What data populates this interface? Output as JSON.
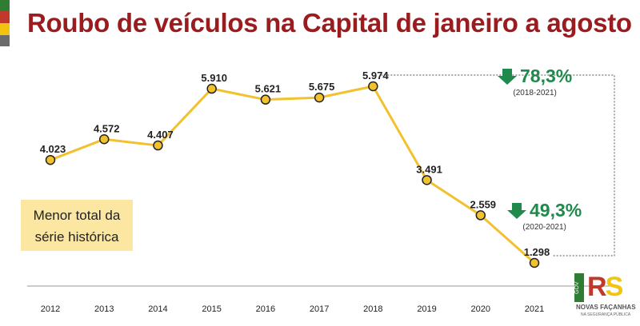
{
  "title": "Roubo de veículos na Capital de janeiro a agosto",
  "callout": [
    "Menor total da",
    "série histórica"
  ],
  "badges": [
    {
      "pct": "78,3%",
      "range": "(2018-2021)",
      "direction": "down"
    },
    {
      "pct": "49,3%",
      "range": "(2020-2021)",
      "direction": "down"
    }
  ],
  "logo": {
    "gov": "GOV",
    "text_rs_r": "R",
    "text_rs_s": "S",
    "name": "NOVAS FAÇANHAS",
    "sub": "NA SEGURANÇA PÚBLICA"
  },
  "colors": {
    "title": "#9b1c1f",
    "line": "#f2c12e",
    "marker_fill": "#f2c12e",
    "marker_stroke": "#222222",
    "callout_bg": "#fbe7a1",
    "badge_green": "#1f8a4c",
    "stripes": [
      "#2e7d32",
      "#c0392b",
      "#f1c40f",
      "#6b6b6b"
    ]
  },
  "chart_data": {
    "type": "line",
    "categories": [
      "2012",
      "2013",
      "2014",
      "2015",
      "2016",
      "2017",
      "2018",
      "2019",
      "2020",
      "2021"
    ],
    "values": [
      4023,
      4572,
      4407,
      5910,
      5621,
      5675,
      5974,
      3491,
      2559,
      1298
    ],
    "labels": [
      "4.023",
      "4.572",
      "4.407",
      "5.910",
      "5.621",
      "5.675",
      "5.974",
      "3.491",
      "2.559",
      "1.298"
    ],
    "title": "Roubo de veículos na Capital de janeiro a agosto",
    "xlabel": "",
    "ylabel": "",
    "grid": false,
    "comparisons": [
      {
        "from": "2018",
        "to": "2021",
        "change": "78,3%",
        "range": "(2018-2021)"
      },
      {
        "from": "2020",
        "to": "2021",
        "change": "49,3%",
        "range": "(2020-2021)"
      }
    ]
  }
}
